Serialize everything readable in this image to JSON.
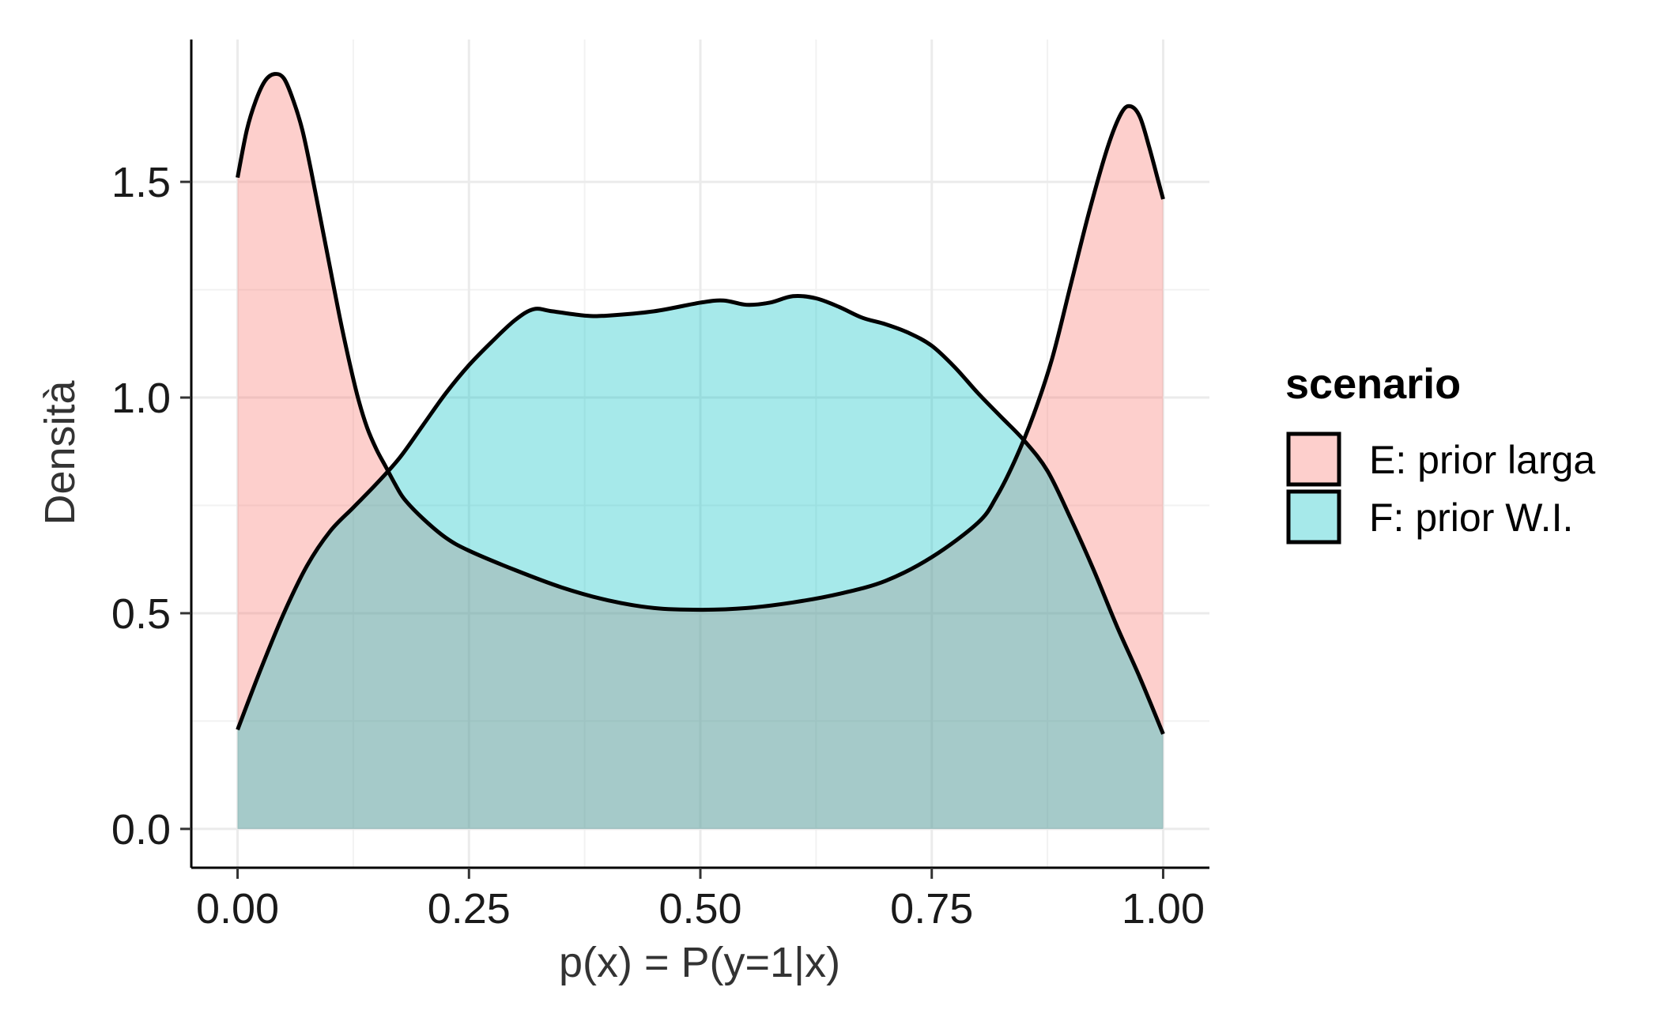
{
  "chart_data": {
    "type": "area",
    "xlabel": "p(x) = P(y=1|x)",
    "ylabel": "Densità",
    "xlim": [
      -0.05,
      1.05
    ],
    "ylim": [
      -0.09,
      1.83
    ],
    "x_ticks": [
      0.0,
      0.25,
      0.5,
      0.75,
      1.0
    ],
    "x_tick_labels": [
      "0.00",
      "0.25",
      "0.50",
      "0.75",
      "1.00"
    ],
    "y_ticks": [
      0.0,
      0.5,
      1.0,
      1.5
    ],
    "y_tick_labels": [
      "0.0",
      "0.5",
      "1.0",
      "1.5"
    ],
    "grid": true,
    "legend": {
      "title": "scenario",
      "position": "right"
    },
    "series": [
      {
        "name": "E: prior larga",
        "color": "#F8766D",
        "points": [
          [
            0.0,
            1.51
          ],
          [
            0.01,
            1.62
          ],
          [
            0.02,
            1.69
          ],
          [
            0.03,
            1.735
          ],
          [
            0.04,
            1.75
          ],
          [
            0.05,
            1.74
          ],
          [
            0.06,
            1.69
          ],
          [
            0.07,
            1.62
          ],
          [
            0.08,
            1.52
          ],
          [
            0.09,
            1.41
          ],
          [
            0.1,
            1.3
          ],
          [
            0.11,
            1.19
          ],
          [
            0.12,
            1.09
          ],
          [
            0.13,
            1.0
          ],
          [
            0.14,
            0.93
          ],
          [
            0.15,
            0.88
          ],
          [
            0.16,
            0.84
          ],
          [
            0.17,
            0.8
          ],
          [
            0.18,
            0.765
          ],
          [
            0.2,
            0.72
          ],
          [
            0.225,
            0.675
          ],
          [
            0.25,
            0.645
          ],
          [
            0.3,
            0.6
          ],
          [
            0.35,
            0.56
          ],
          [
            0.4,
            0.53
          ],
          [
            0.45,
            0.512
          ],
          [
            0.5,
            0.508
          ],
          [
            0.55,
            0.512
          ],
          [
            0.6,
            0.525
          ],
          [
            0.65,
            0.545
          ],
          [
            0.7,
            0.575
          ],
          [
            0.75,
            0.63
          ],
          [
            0.8,
            0.71
          ],
          [
            0.82,
            0.77
          ],
          [
            0.84,
            0.855
          ],
          [
            0.86,
            0.96
          ],
          [
            0.88,
            1.09
          ],
          [
            0.9,
            1.26
          ],
          [
            0.92,
            1.43
          ],
          [
            0.94,
            1.58
          ],
          [
            0.955,
            1.66
          ],
          [
            0.965,
            1.675
          ],
          [
            0.975,
            1.65
          ],
          [
            0.985,
            1.58
          ],
          [
            0.995,
            1.5
          ],
          [
            1.0,
            1.46
          ]
        ]
      },
      {
        "name": "F: prior W.I.",
        "color": "#00BFC4",
        "points": [
          [
            0.0,
            0.23
          ],
          [
            0.025,
            0.37
          ],
          [
            0.05,
            0.5
          ],
          [
            0.075,
            0.61
          ],
          [
            0.1,
            0.69
          ],
          [
            0.125,
            0.745
          ],
          [
            0.15,
            0.8
          ],
          [
            0.175,
            0.86
          ],
          [
            0.2,
            0.935
          ],
          [
            0.225,
            1.01
          ],
          [
            0.25,
            1.075
          ],
          [
            0.275,
            1.13
          ],
          [
            0.3,
            1.18
          ],
          [
            0.32,
            1.205
          ],
          [
            0.34,
            1.2
          ],
          [
            0.375,
            1.19
          ],
          [
            0.4,
            1.19
          ],
          [
            0.45,
            1.2
          ],
          [
            0.5,
            1.22
          ],
          [
            0.525,
            1.225
          ],
          [
            0.55,
            1.215
          ],
          [
            0.575,
            1.22
          ],
          [
            0.6,
            1.235
          ],
          [
            0.625,
            1.23
          ],
          [
            0.65,
            1.21
          ],
          [
            0.675,
            1.185
          ],
          [
            0.7,
            1.17
          ],
          [
            0.725,
            1.15
          ],
          [
            0.75,
            1.12
          ],
          [
            0.775,
            1.07
          ],
          [
            0.8,
            1.01
          ],
          [
            0.825,
            0.955
          ],
          [
            0.85,
            0.9
          ],
          [
            0.875,
            0.83
          ],
          [
            0.9,
            0.72
          ],
          [
            0.925,
            0.6
          ],
          [
            0.95,
            0.47
          ],
          [
            0.975,
            0.35
          ],
          [
            1.0,
            0.22
          ]
        ]
      }
    ]
  }
}
